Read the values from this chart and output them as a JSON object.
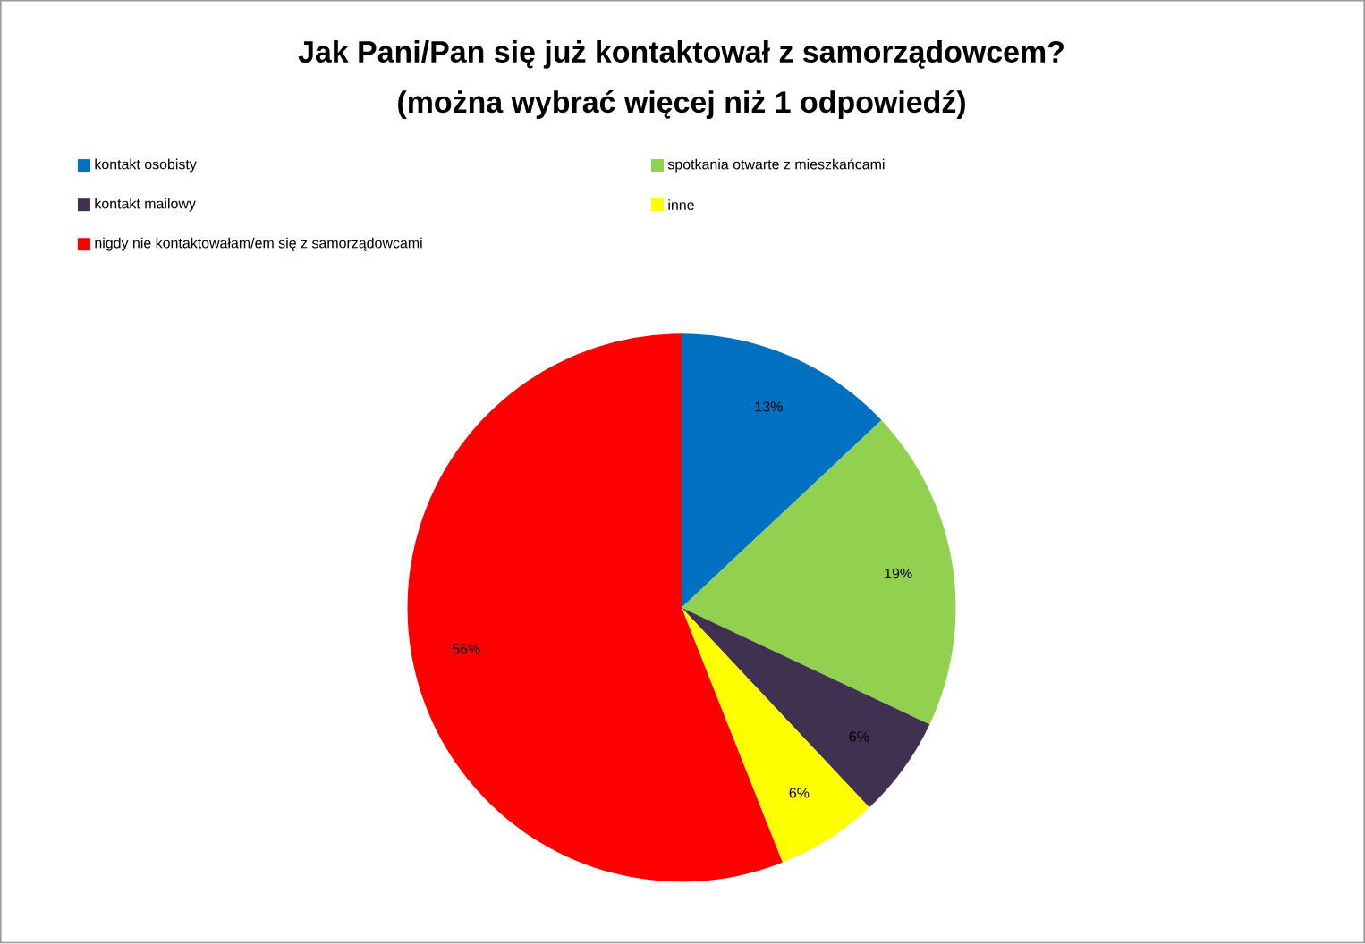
{
  "chart_data": {
    "type": "pie",
    "title": "Jak Pani/Pan się już kontaktował z samorządowcem?",
    "subtitle": "(można wybrać więcej niż 1 odpowiedź)",
    "categories": [
      "kontakt osobisty",
      "spotkania otwarte z mieszkańcami",
      "kontakt mailowy",
      "inne",
      "nigdy nie kontaktowałam/em się z samorządowcami"
    ],
    "values": [
      13,
      19,
      6,
      6,
      56
    ],
    "colors": [
      "#0070c0",
      "#92d050",
      "#403151",
      "#ffff00",
      "#ff0000"
    ],
    "value_labels": [
      "13%",
      "19%",
      "6%",
      "6%",
      "56%"
    ],
    "legend": "top"
  }
}
